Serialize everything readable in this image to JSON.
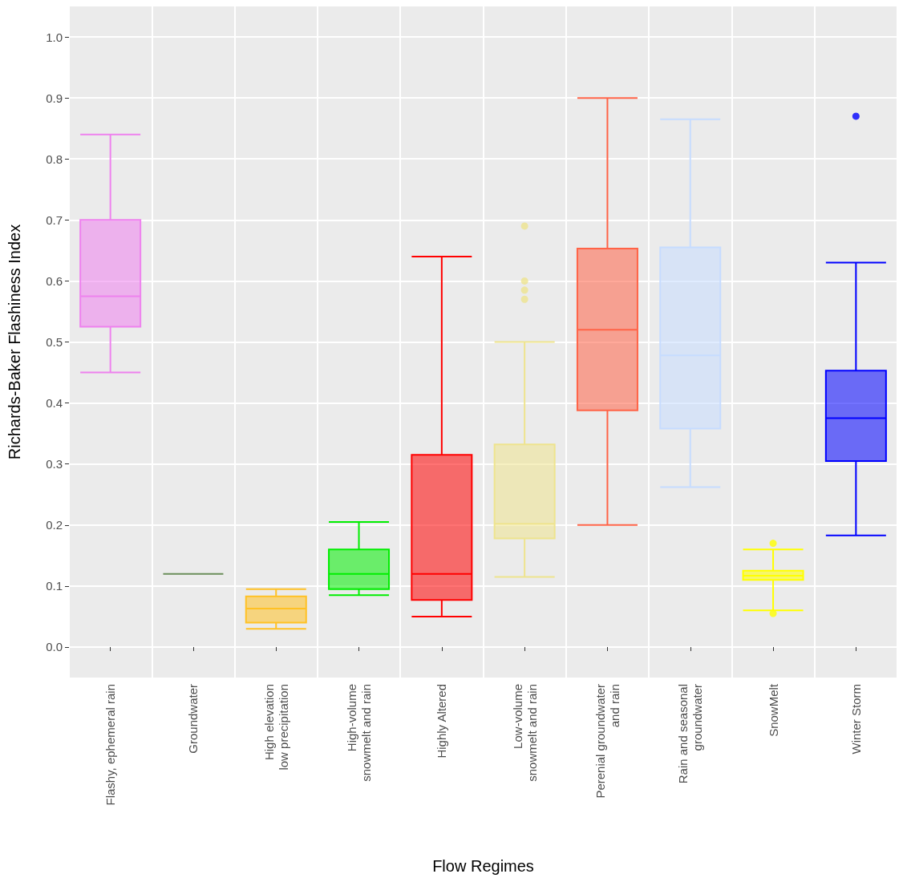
{
  "chart_data": {
    "type": "box",
    "xlabel": "Flow Regimes",
    "ylabel": "Richards-Baker Flashiness Index",
    "categories": [
      "Flashy, ephemeral rain",
      "Groundwater",
      "High elevation\nlow precipitation",
      "High-volume\nsnowmelt and rain",
      "Highly Altered",
      "Low-volume\nsnowmelt and rain",
      "Perenial groundwater\nand rain",
      "Rain and seasonal\ngroundwater",
      "SnowMelt",
      "Winter Storm"
    ],
    "colors": [
      "#ee82ee",
      "#6b8e5a",
      "#ffc125",
      "#00ee00",
      "#ff0000",
      "#eee48e",
      "#ff6347",
      "#c6dcff",
      "#ffff00",
      "#0000ff"
    ],
    "boxes": [
      {
        "low": 0.45,
        "q1": 0.525,
        "median": 0.575,
        "q3": 0.7,
        "high": 0.84
      },
      {
        "low": 0.12,
        "q1": 0.12,
        "median": 0.12,
        "q3": 0.12,
        "high": 0.12
      },
      {
        "low": 0.03,
        "q1": 0.04,
        "median": 0.063,
        "q3": 0.083,
        "high": 0.095
      },
      {
        "low": 0.085,
        "q1": 0.095,
        "median": 0.12,
        "q3": 0.16,
        "high": 0.205
      },
      {
        "low": 0.05,
        "q1": 0.077,
        "median": 0.12,
        "q3": 0.315,
        "high": 0.64
      },
      {
        "low": 0.115,
        "q1": 0.178,
        "median": 0.202,
        "q3": 0.332,
        "high": 0.5,
        "outliers": [
          0.69,
          0.6,
          0.585,
          0.57
        ]
      },
      {
        "low": 0.2,
        "q1": 0.388,
        "median": 0.52,
        "q3": 0.653,
        "high": 0.9
      },
      {
        "low": 0.262,
        "q1": 0.358,
        "median": 0.478,
        "q3": 0.655,
        "high": 0.865
      },
      {
        "low": 0.06,
        "q1": 0.11,
        "median": 0.117,
        "q3": 0.125,
        "high": 0.16,
        "outliers": [
          0.17,
          0.055
        ]
      },
      {
        "low": 0.183,
        "q1": 0.305,
        "median": 0.375,
        "q3": 0.453,
        "high": 0.63,
        "outliers": [
          0.87
        ]
      }
    ],
    "ylim": [
      -0.05,
      1.05
    ],
    "yticks": [
      {
        "value": 0,
        "label": "0.0"
      },
      0.1,
      0.2,
      0.3,
      0.4,
      0.5,
      0.6,
      0.7,
      0.8,
      0.9,
      {
        "value": 1,
        "label": "1.0"
      }
    ],
    "grid": true
  }
}
